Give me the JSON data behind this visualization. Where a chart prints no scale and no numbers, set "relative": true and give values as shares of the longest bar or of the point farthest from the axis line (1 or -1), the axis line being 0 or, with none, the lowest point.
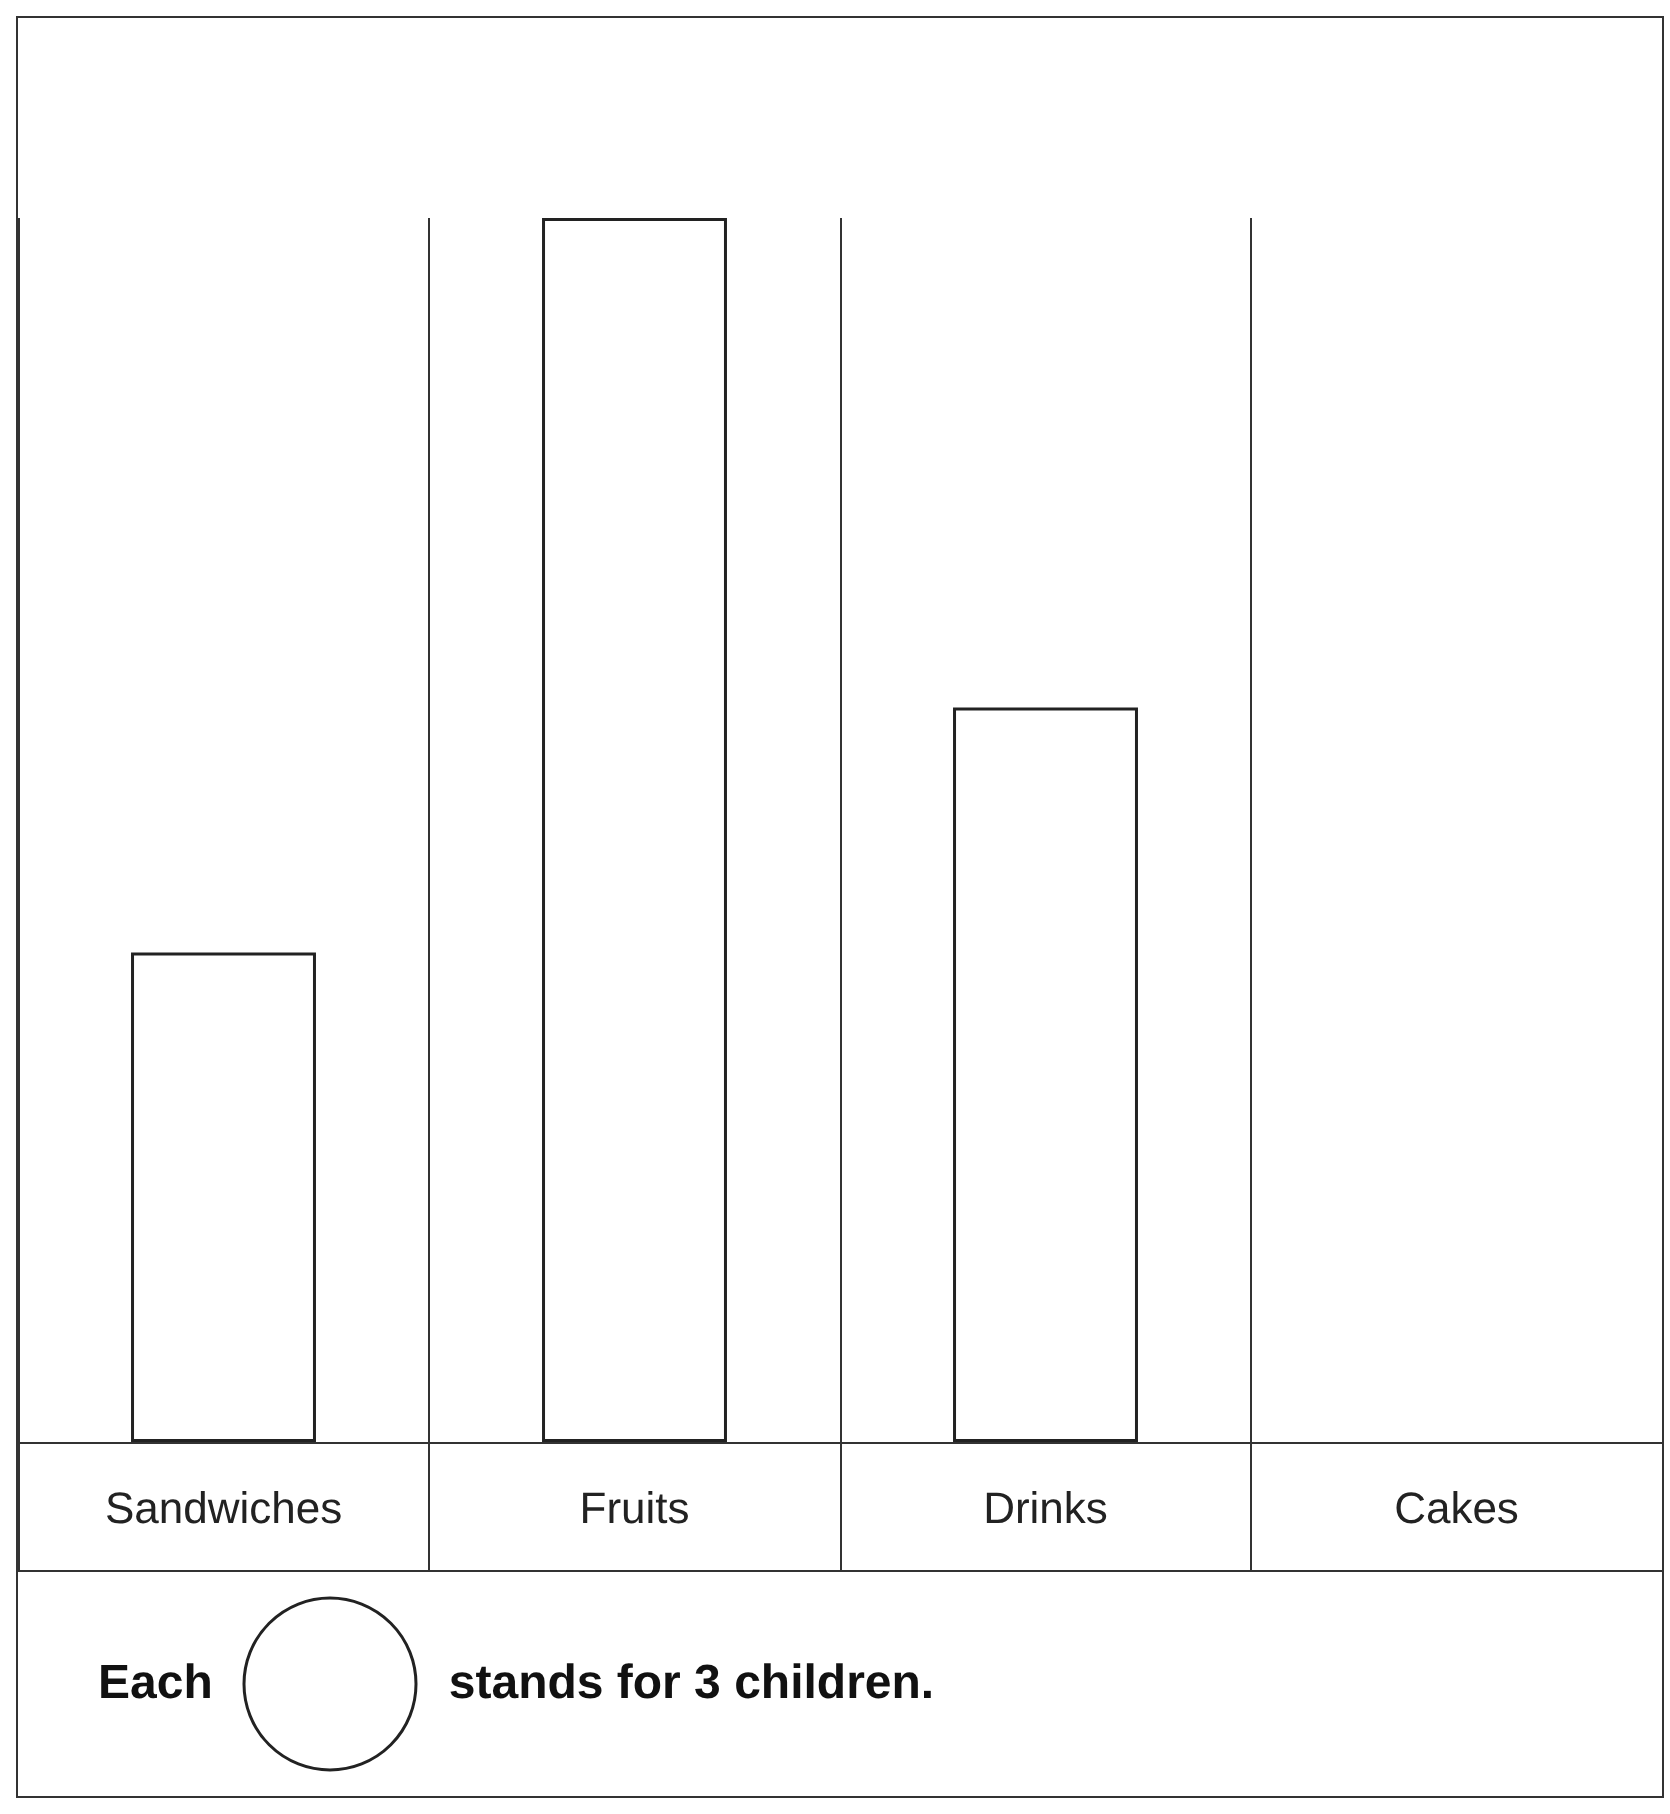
{
  "chart_data": {
    "type": "bar",
    "relative": true,
    "categories": [
      "Sandwiches",
      "Fruits",
      "Drinks",
      "Cakes"
    ],
    "values": [
      0.4,
      1,
      0.6,
      0
    ],
    "color": "#ffffff",
    "grid": "x",
    "annotations": [
      "Each",
      "stands for 3 children."
    ]
  }
}
